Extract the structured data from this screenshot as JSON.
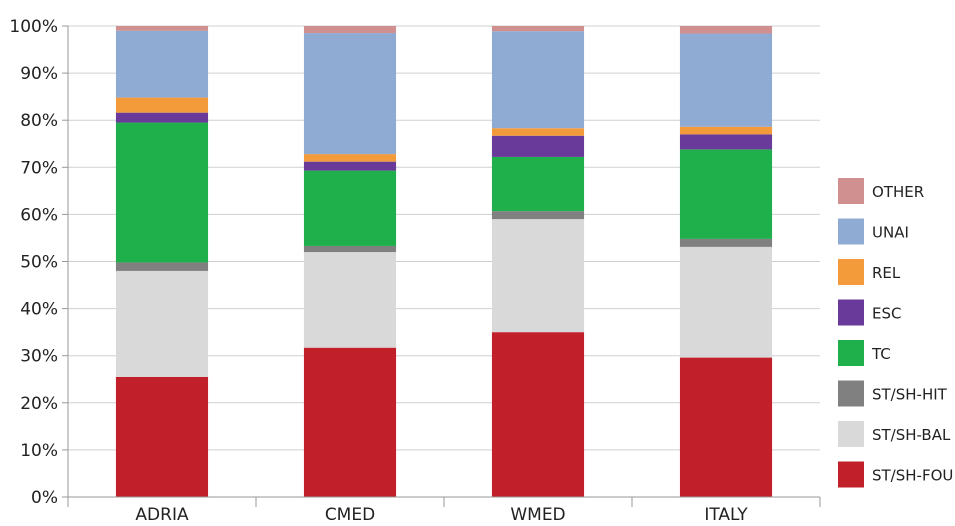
{
  "chart_data": {
    "type": "bar",
    "stacked": true,
    "title": "",
    "xlabel": "",
    "ylabel": "",
    "ylim": [
      0,
      100
    ],
    "y_ticks": [
      "0%",
      "10%",
      "20%",
      "30%",
      "40%",
      "50%",
      "60%",
      "70%",
      "80%",
      "90%",
      "100%"
    ],
    "grid": true,
    "legend_position": "right",
    "categories": [
      "ADRIA",
      "CMED",
      "WMED",
      "ITALY"
    ],
    "series": [
      {
        "name": "ST/SH-FOU",
        "color": "#c1202a",
        "values": [
          25.5,
          31.7,
          35.0,
          29.6
        ]
      },
      {
        "name": "ST/SH-BAL",
        "color": "#d9d9d9",
        "values": [
          22.5,
          20.3,
          24.0,
          23.5
        ]
      },
      {
        "name": "ST/SH-HIT",
        "color": "#808080",
        "values": [
          1.8,
          1.3,
          1.7,
          1.7
        ]
      },
      {
        "name": "TC",
        "color": "#20b04b",
        "values": [
          29.7,
          16.0,
          11.5,
          19.0
        ]
      },
      {
        "name": "ESC",
        "color": "#6a3a9b",
        "values": [
          2.1,
          1.9,
          4.5,
          3.2
        ]
      },
      {
        "name": "REL",
        "color": "#f39a3b",
        "values": [
          3.2,
          1.6,
          1.6,
          1.6
        ]
      },
      {
        "name": "UNAI",
        "color": "#8faad3",
        "values": [
          14.2,
          25.7,
          20.6,
          19.8
        ]
      },
      {
        "name": "OTHER",
        "color": "#d19090",
        "values": [
          1.0,
          1.5,
          1.1,
          1.6
        ]
      }
    ]
  }
}
